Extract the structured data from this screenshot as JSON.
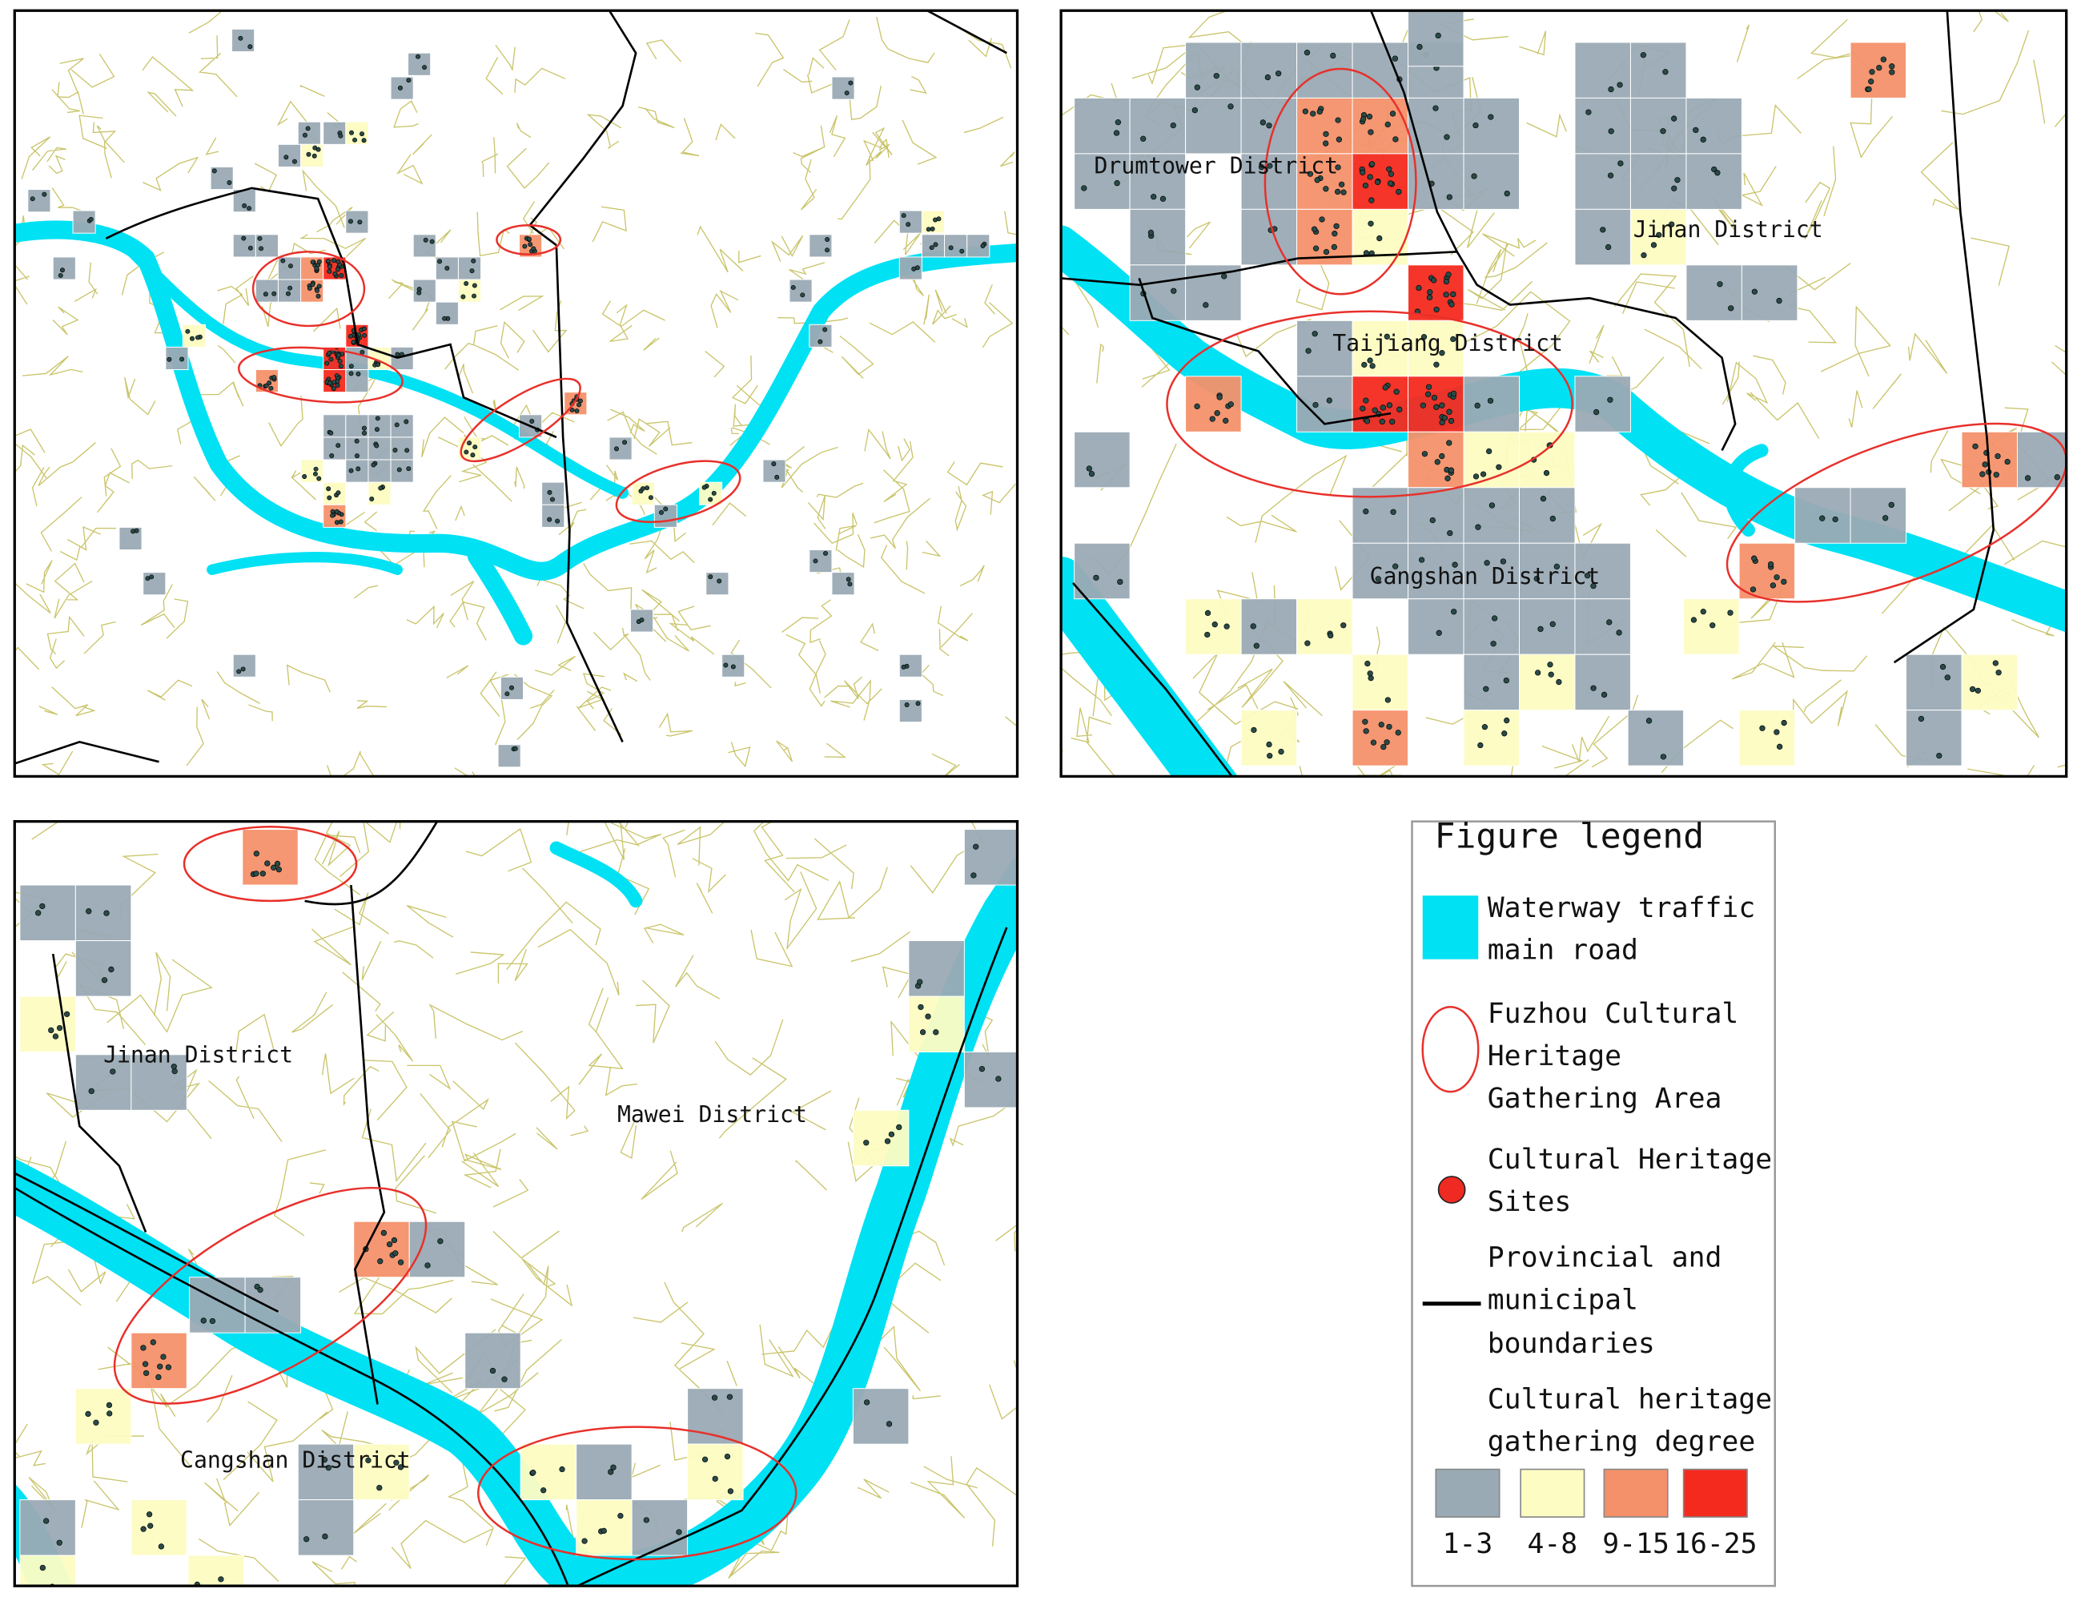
{
  "panels": [
    {
      "labels": []
    },
    {
      "labels": [
        "Drumtower District",
        "Jinan District",
        "Taijiang District",
        "Cangshan District"
      ]
    },
    {
      "labels": [
        "Jinan District",
        "Mawei District",
        "Cangshan District"
      ]
    }
  ],
  "legend": {
    "title": "Figure legend",
    "items": [
      {
        "lines": [
          "Waterway traffic",
          "main road"
        ],
        "color": "#00e1f4"
      },
      {
        "lines": [
          "Fuzhou Cultural",
          "Heritage",
          "Gathering Area"
        ],
        "color": "#e8302a"
      },
      {
        "lines": [
          "Cultural Heritage",
          "Sites"
        ],
        "color": "#ee2a22"
      },
      {
        "lines": [
          "Provincial and",
          "municipal",
          "boundaries"
        ],
        "color": "#000000"
      },
      {
        "lines": [
          "Cultural heritage",
          "gathering degree"
        ]
      }
    ],
    "degree_classes": [
      {
        "label": "1-3",
        "color": "#9aaab4"
      },
      {
        "label": "4-8",
        "color": "#fdfcc2"
      },
      {
        "label": "9-15",
        "color": "#f4916a"
      },
      {
        "label": "16-25",
        "color": "#f42a1f"
      }
    ]
  }
}
